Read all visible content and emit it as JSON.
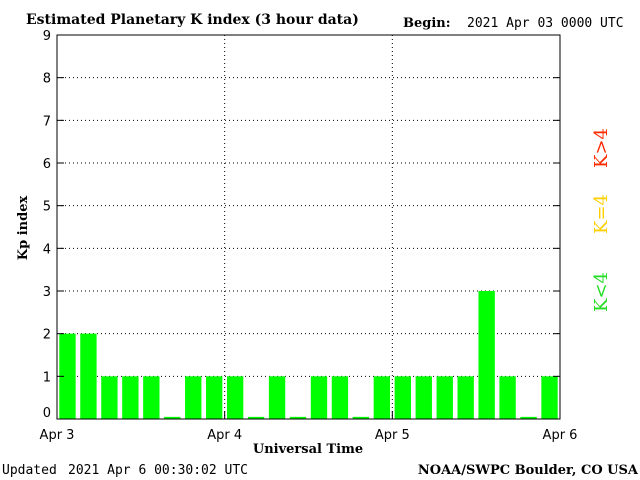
{
  "header": {
    "title": "Estimated Planetary K index (3 hour data)",
    "begin_label": "Begin:",
    "begin_value": "2021 Apr 03 0000 UTC"
  },
  "footer": {
    "updated_label": "Updated",
    "updated_value": "2021 Apr  6 00:30:02 UTC",
    "credit": "NOAA/SWPC Boulder, CO USA"
  },
  "legend": [
    {
      "label": "K>4",
      "color": "#ff2a00"
    },
    {
      "label": "K=4",
      "color": "#ffd000"
    },
    {
      "label": "K<4",
      "color": "#22dd22"
    }
  ],
  "chart_data": {
    "type": "bar",
    "xlabel": "Universal Time",
    "ylabel": "Kp index",
    "ylim": [
      0,
      9
    ],
    "yticks": [
      0,
      1,
      2,
      3,
      4,
      5,
      6,
      7,
      8,
      9
    ],
    "xticks": [
      "Apr 3",
      "Apr 4",
      "Apr 5",
      "Apr 6"
    ],
    "bar_color": "#00ff00",
    "grid": "dotted, major ticks",
    "values": [
      2,
      2,
      1,
      1,
      1,
      0.05,
      1,
      1,
      1,
      0.05,
      1,
      0.05,
      1,
      1,
      0.05,
      1,
      1,
      1,
      1,
      1,
      3,
      1,
      0.05,
      1
    ]
  }
}
